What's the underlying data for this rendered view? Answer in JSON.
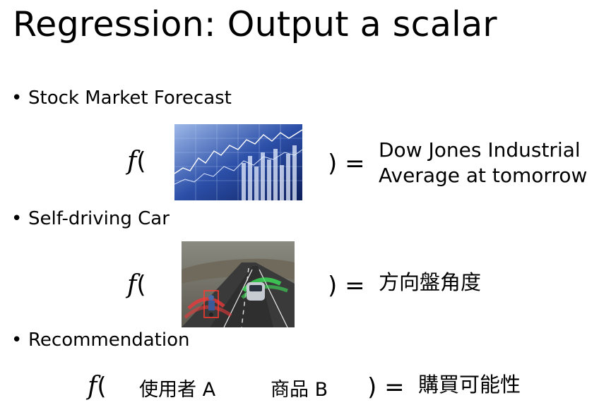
{
  "slide": {
    "title": "Regression: Output a scalar",
    "items": [
      {
        "label": "Stock Market Forecast",
        "function": "f",
        "open_paren": "(",
        "close_eq": ") =",
        "output_lines": [
          "Dow Jones Industrial",
          "Average at tomorrow"
        ],
        "image_icon": "stock-chart-image"
      },
      {
        "label": "Self-driving Car",
        "function": "f",
        "open_paren": "(",
        "close_eq": ") =",
        "output": "方向盤角度",
        "image_icon": "self-driving-car-image"
      },
      {
        "label": "Recommendation",
        "function": "f",
        "open_paren": "(",
        "input_a": "使用者 A",
        "input_b": "商品 B",
        "close_eq": ") =",
        "output": "購買可能性"
      }
    ],
    "bullet_glyph": "•"
  }
}
